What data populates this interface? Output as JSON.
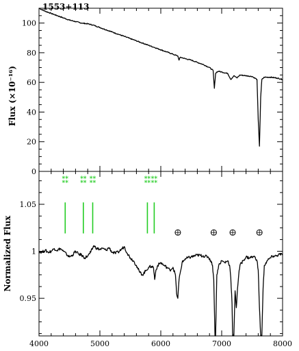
{
  "chart_data": [
    {
      "type": "line",
      "title": "1553+113",
      "xlabel": "",
      "ylabel": "Flux (×10⁻¹⁶)",
      "xlim": [
        4000,
        8000
      ],
      "ylim": [
        0,
        110
      ],
      "x_ticks": [
        4000,
        5000,
        6000,
        7000,
        8000
      ],
      "y_ticks": [
        0,
        20,
        40,
        60,
        80,
        100
      ],
      "y_tick_labels": [
        "0",
        "20",
        "40",
        "60",
        "80",
        "100"
      ],
      "grid": false,
      "series": [
        {
          "x": [
            4000,
            4100,
            4200,
            4300,
            4400,
            4500,
            4600,
            4700,
            4800,
            4900,
            5000,
            5100,
            5200,
            5300,
            5400,
            5500,
            5600,
            5700,
            5800,
            5900,
            6000,
            6100,
            6200,
            6280,
            6300,
            6320,
            6400,
            6500,
            6600,
            6700,
            6800,
            6860,
            6880,
            6900,
            6920,
            6950,
            7000,
            7100,
            7150,
            7200,
            7250,
            7300,
            7400,
            7500,
            7580,
            7600,
            7620,
            7640,
            7660,
            7700,
            7800,
            7900,
            8000
          ],
          "y": [
            110,
            108,
            106.5,
            105,
            103.5,
            102,
            101,
            100,
            99.5,
            98.5,
            97,
            95.5,
            94,
            92.5,
            91,
            89.5,
            88,
            86.5,
            85,
            83.5,
            82,
            80.5,
            79,
            77.8,
            75,
            77,
            76,
            75,
            73.5,
            72,
            70,
            68,
            56,
            66,
            67,
            67.5,
            67,
            66,
            62,
            64.5,
            63,
            65,
            64.5,
            64,
            62,
            35,
            17,
            50,
            62,
            63.5,
            63.5,
            63,
            62
          ]
        }
      ]
    },
    {
      "type": "line",
      "title": "",
      "xlabel": "",
      "ylabel": "Normalized Flux",
      "xlim": [
        4000,
        8000
      ],
      "ylim": [
        0.91,
        1.085
      ],
      "x_ticks": [
        4000,
        5000,
        6000,
        7000,
        8000
      ],
      "x_tick_labels": [
        "4000",
        "5000",
        "6000",
        "7000",
        "8000"
      ],
      "y_ticks": [
        0.95,
        1.0,
        1.05
      ],
      "y_tick_labels": [
        "0.95",
        "1",
        "1.05"
      ],
      "grid": false,
      "series": [
        {
          "x": [
            4000,
            4050,
            4100,
            4150,
            4200,
            4250,
            4300,
            4350,
            4400,
            4450,
            4500,
            4550,
            4600,
            4650,
            4700,
            4750,
            4800,
            4850,
            4900,
            4950,
            5000,
            5050,
            5100,
            5150,
            5200,
            5250,
            5300,
            5350,
            5400,
            5450,
            5500,
            5550,
            5600,
            5650,
            5700,
            5750,
            5800,
            5850,
            5880,
            5900,
            5920,
            5950,
            6000,
            6050,
            6100,
            6150,
            6200,
            6240,
            6260,
            6280,
            6300,
            6350,
            6400,
            6500,
            6600,
            6700,
            6780,
            6820,
            6850,
            6870,
            6880,
            6890,
            6900,
            6920,
            6950,
            7000,
            7050,
            7100,
            7130,
            7150,
            7170,
            7180,
            7200,
            7220,
            7240,
            7260,
            7280,
            7300,
            7350,
            7400,
            7450,
            7500,
            7550,
            7580,
            7600,
            7620,
            7640,
            7660,
            7680,
            7700,
            7750,
            7800,
            7850,
            7900,
            7950,
            8000
          ],
          "y": [
            1.0,
            0.999,
            1.001,
            0.999,
            1.0,
            1.003,
            1.001,
            1.003,
            1.0,
            0.997,
            0.994,
            0.996,
            1.0,
            0.997,
            0.996,
            0.993,
            0.995,
            0.999,
            1.006,
            1.003,
            1.002,
            1.003,
            1.001,
            1.004,
            0.999,
            0.998,
            0.999,
            1.002,
            1.005,
            0.998,
            0.993,
            0.99,
            0.985,
            0.978,
            0.975,
            0.979,
            0.983,
            0.984,
            0.983,
            0.97,
            0.98,
            0.985,
            0.988,
            0.985,
            0.983,
            0.98,
            0.983,
            0.975,
            0.955,
            0.95,
            0.97,
            0.988,
            0.992,
            0.994,
            0.996,
            0.995,
            0.994,
            0.99,
            0.985,
            0.97,
            0.94,
            0.91,
            0.91,
            0.975,
            0.985,
            0.99,
            0.988,
            0.99,
            0.985,
            0.972,
            0.945,
            0.91,
            0.91,
            0.958,
            0.94,
            0.96,
            0.975,
            0.985,
            0.99,
            0.994,
            0.993,
            0.994,
            0.994,
            0.99,
            0.98,
            0.94,
            0.91,
            0.91,
            0.96,
            0.985,
            0.99,
            0.993,
            0.995,
            0.995,
            0.997,
            0.996
          ]
        }
      ],
      "line_markers": {
        "color": "#22cc22",
        "symbol": "*",
        "groups": [
          {
            "lines": [
              4430
            ]
          },
          {
            "lines": [
              4728,
              4882
            ]
          },
          {
            "lines": [
              5780,
              5892
            ]
          }
        ],
        "y_range": [
          1.019,
          1.052
        ],
        "symbol_y": 1.075
      },
      "telluric_markers": {
        "symbol": "⊕",
        "x": [
          6280,
          6870,
          7180,
          7620
        ],
        "y": 1.02
      }
    }
  ]
}
